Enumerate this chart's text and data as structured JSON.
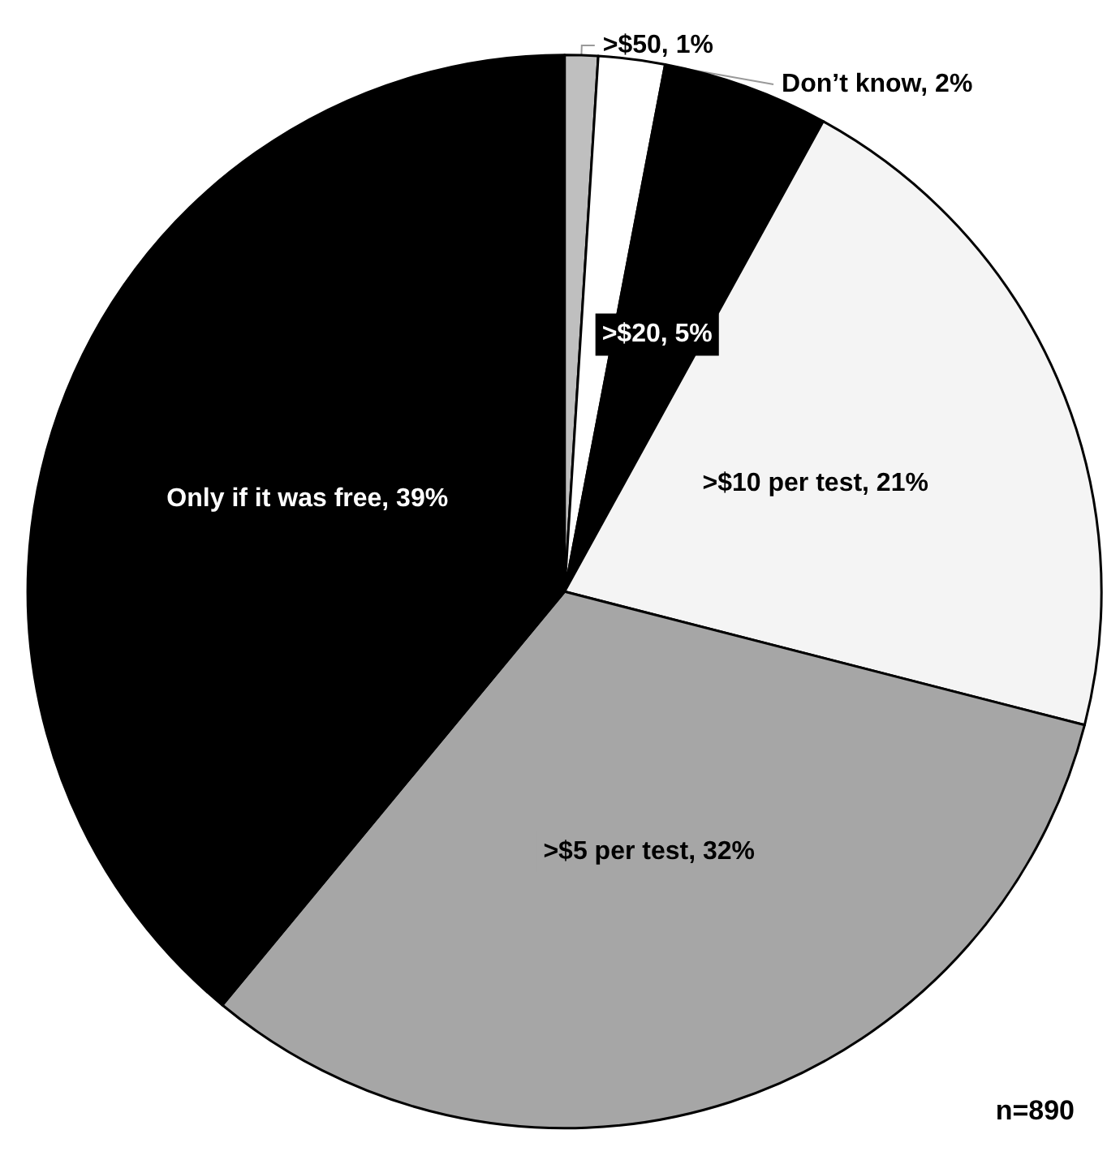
{
  "chart_data": {
    "type": "pie",
    "categories": [
      ">$50",
      "Don’t know",
      ">$20",
      ">$10 per test",
      ">$5 per test",
      "Only if it was free"
    ],
    "values": [
      1,
      2,
      5,
      21,
      32,
      39
    ],
    "value_labels": [
      "1%",
      "2%",
      "5%",
      "21%",
      "32%",
      "39%"
    ],
    "colors": [
      "#bfbfbf",
      "#ffffff",
      "#000000",
      "#f4f4f4",
      "#a6a6a6",
      "#000000"
    ],
    "annotations": [
      "n=890"
    ],
    "legend": false
  }
}
